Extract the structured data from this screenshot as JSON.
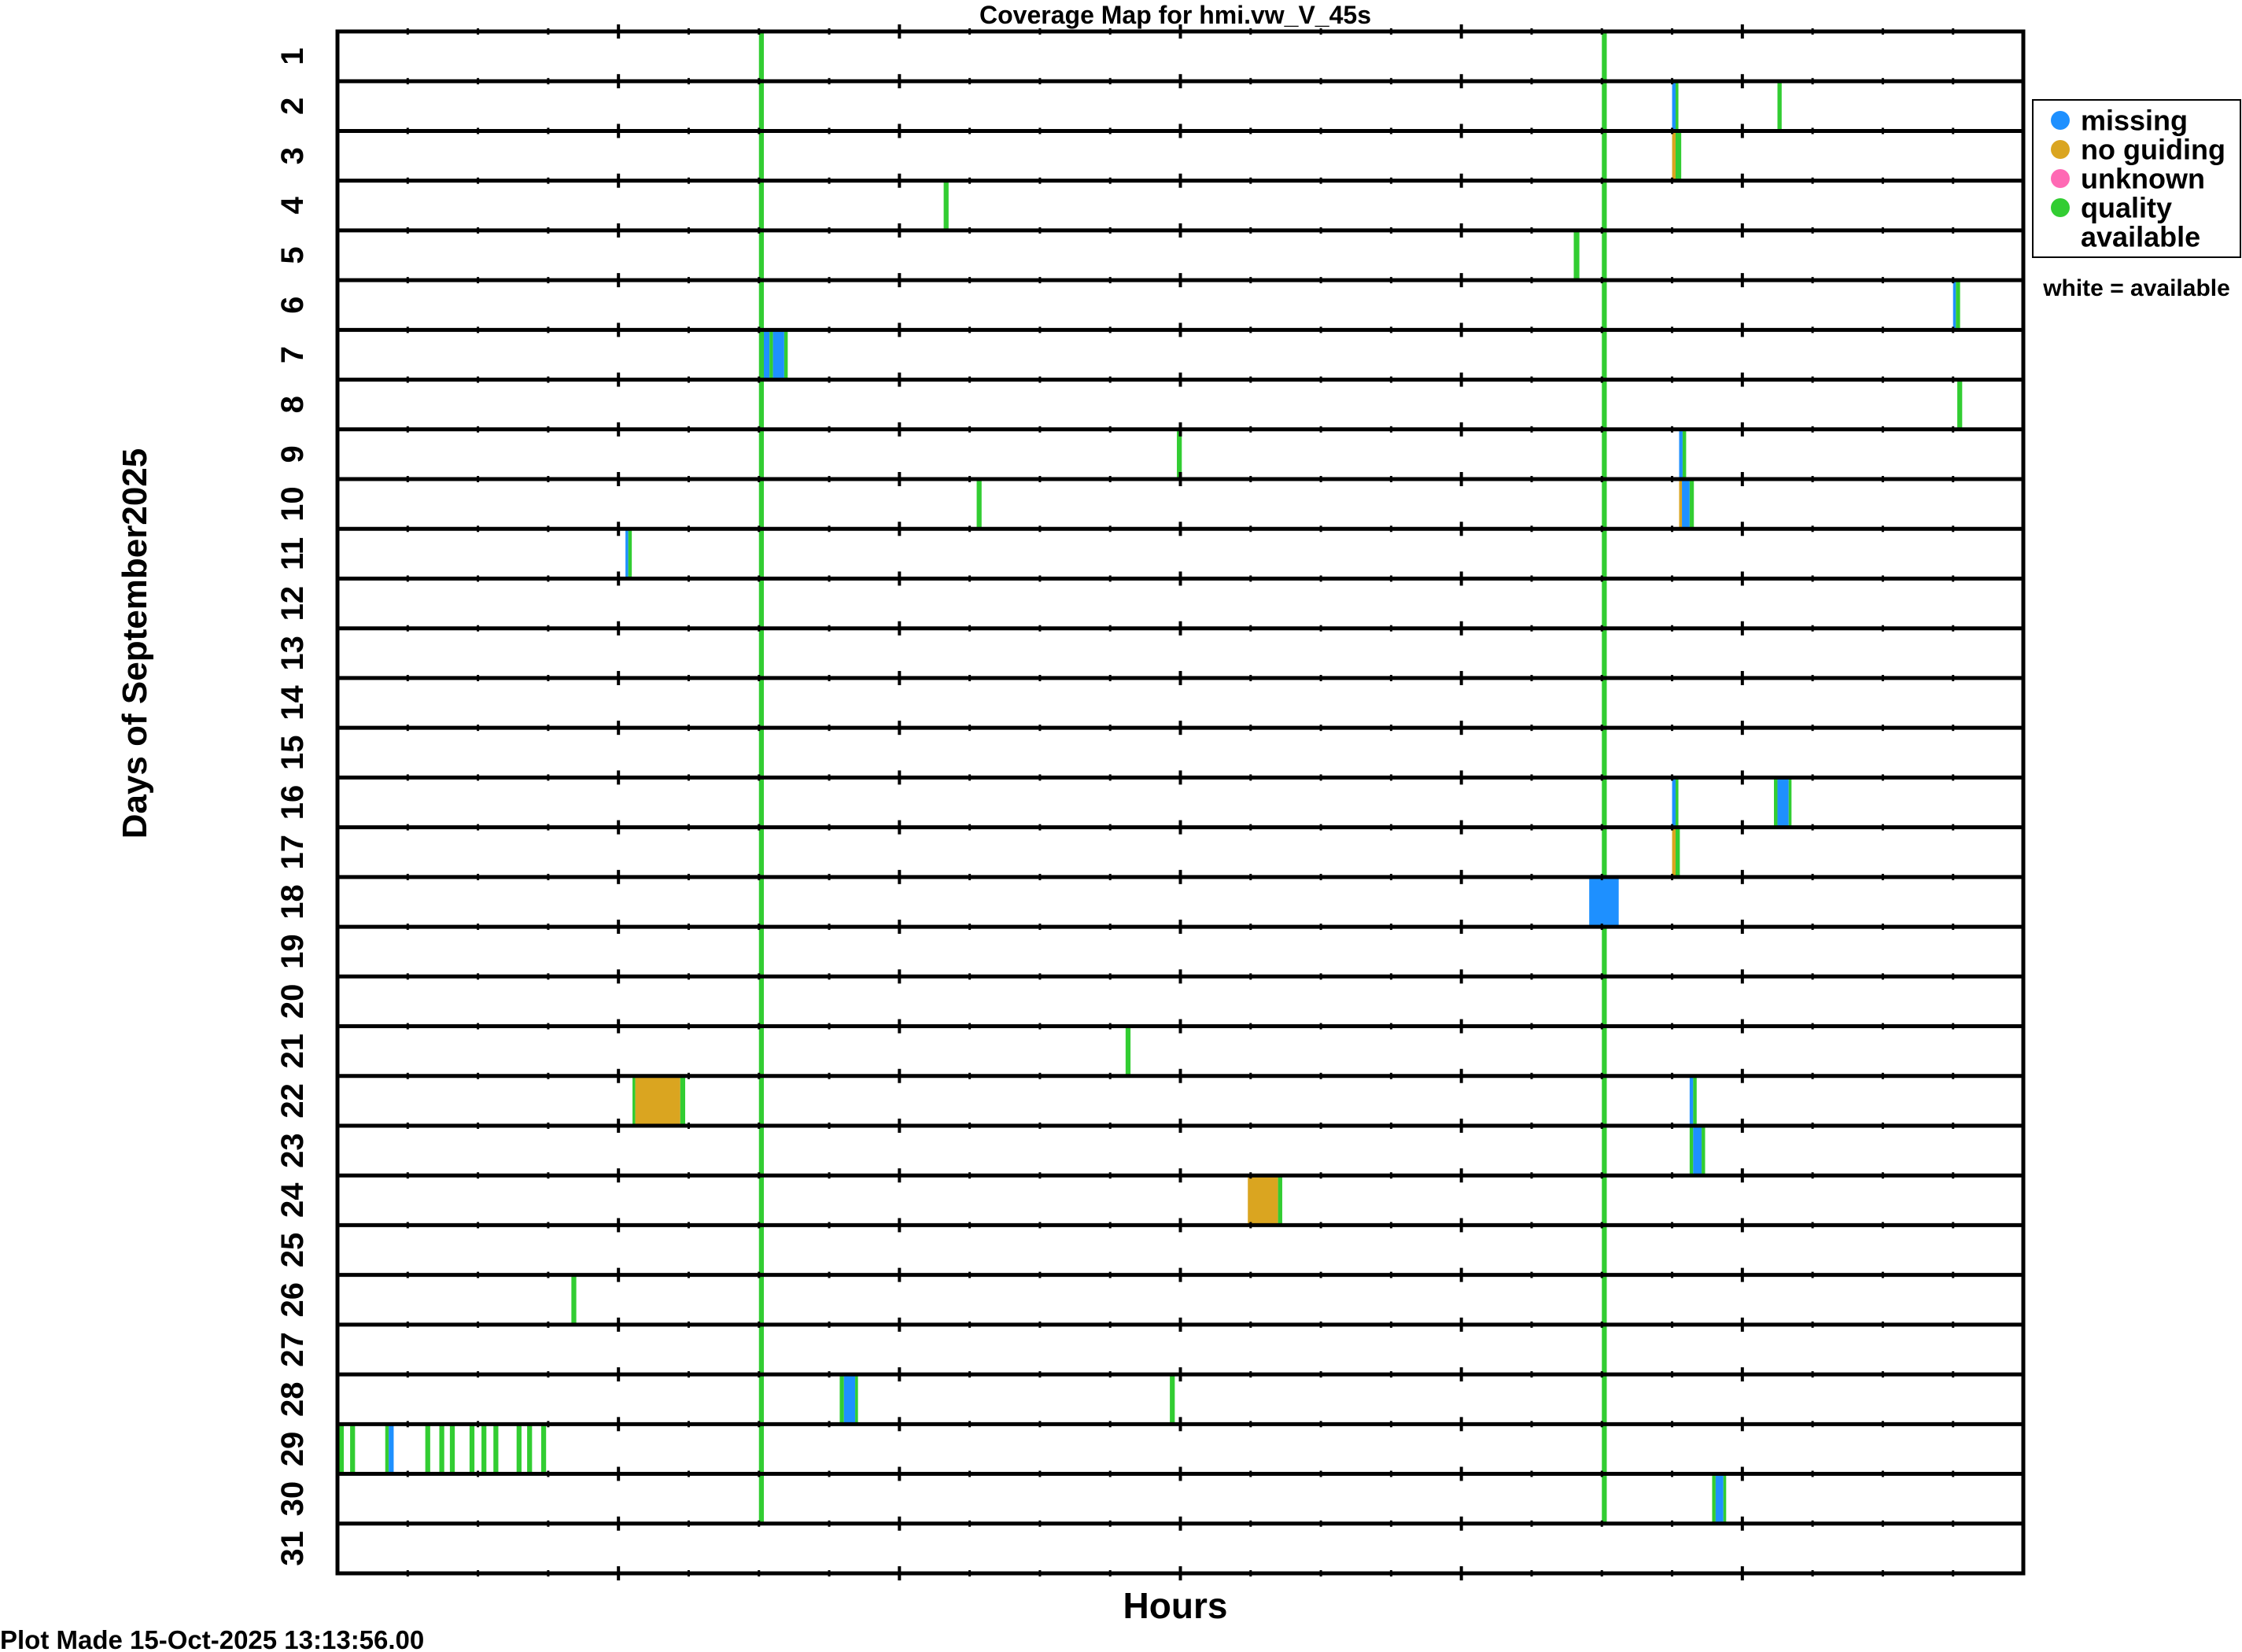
{
  "chart_data": {
    "type": "heatmap",
    "title": "Coverage Map for hmi.vw_V_45s",
    "xlabel": "Hours",
    "ylabel": "Days of September2025",
    "xlim": [
      0,
      24
    ],
    "day_labels": [
      "1",
      "2",
      "3",
      "4",
      "5",
      "6",
      "7",
      "8",
      "9",
      "10",
      "11",
      "12",
      "13",
      "14",
      "15",
      "16",
      "17",
      "18",
      "19",
      "20",
      "21",
      "22",
      "23",
      "24",
      "25",
      "26",
      "27",
      "28",
      "29",
      "30",
      "31"
    ],
    "colors": {
      "missing": "#1e90ff",
      "no_guiding": "#daa520",
      "unknown": "#ff69b4",
      "quality": "#32cd32",
      "gridline": "#000000"
    },
    "legend": {
      "placement": "right",
      "items": [
        {
          "key": "missing",
          "lines": [
            "missing"
          ]
        },
        {
          "key": "no_guiding",
          "lines": [
            "no guiding"
          ]
        },
        {
          "key": "unknown",
          "lines": [
            "unknown"
          ]
        },
        {
          "key": "quality",
          "lines": [
            "quality",
            "available"
          ]
        }
      ],
      "note": "white = available"
    },
    "segments": [
      {
        "day": 1,
        "start": 6.0,
        "end": 6.07,
        "status": "quality"
      },
      {
        "day": 1,
        "start": 18.0,
        "end": 18.07,
        "status": "quality"
      },
      {
        "day": 2,
        "start": 6.0,
        "end": 6.07,
        "status": "quality"
      },
      {
        "day": 2,
        "start": 18.0,
        "end": 18.07,
        "status": "quality"
      },
      {
        "day": 2,
        "start": 19.0,
        "end": 19.05,
        "status": "missing"
      },
      {
        "day": 2,
        "start": 19.05,
        "end": 19.09,
        "status": "quality"
      },
      {
        "day": 2,
        "start": 20.5,
        "end": 20.56,
        "status": "quality"
      },
      {
        "day": 3,
        "start": 6.0,
        "end": 6.07,
        "status": "quality"
      },
      {
        "day": 3,
        "start": 18.0,
        "end": 18.07,
        "status": "quality"
      },
      {
        "day": 3,
        "start": 19.0,
        "end": 19.05,
        "status": "no_guiding"
      },
      {
        "day": 3,
        "start": 19.05,
        "end": 19.13,
        "status": "quality"
      },
      {
        "day": 4,
        "start": 6.0,
        "end": 6.07,
        "status": "quality"
      },
      {
        "day": 4,
        "start": 18.0,
        "end": 18.07,
        "status": "quality"
      },
      {
        "day": 4,
        "start": 8.63,
        "end": 8.7,
        "status": "quality"
      },
      {
        "day": 5,
        "start": 6.0,
        "end": 6.07,
        "status": "quality"
      },
      {
        "day": 5,
        "start": 18.0,
        "end": 18.07,
        "status": "quality"
      },
      {
        "day": 5,
        "start": 17.6,
        "end": 17.68,
        "status": "quality"
      },
      {
        "day": 6,
        "start": 6.0,
        "end": 6.07,
        "status": "quality"
      },
      {
        "day": 6,
        "start": 18.0,
        "end": 18.07,
        "status": "quality"
      },
      {
        "day": 6,
        "start": 23.0,
        "end": 23.04,
        "status": "missing"
      },
      {
        "day": 6,
        "start": 23.04,
        "end": 23.1,
        "status": "quality"
      },
      {
        "day": 7,
        "start": 6.0,
        "end": 6.07,
        "status": "quality"
      },
      {
        "day": 7,
        "start": 18.0,
        "end": 18.07,
        "status": "quality"
      },
      {
        "day": 7,
        "start": 6.07,
        "end": 6.15,
        "status": "missing"
      },
      {
        "day": 7,
        "start": 6.15,
        "end": 6.2,
        "status": "quality"
      },
      {
        "day": 7,
        "start": 6.2,
        "end": 6.36,
        "status": "missing"
      },
      {
        "day": 7,
        "start": 6.36,
        "end": 6.41,
        "status": "quality"
      },
      {
        "day": 8,
        "start": 6.0,
        "end": 6.07,
        "status": "quality"
      },
      {
        "day": 8,
        "start": 18.0,
        "end": 18.07,
        "status": "quality"
      },
      {
        "day": 8,
        "start": 23.06,
        "end": 23.13,
        "status": "quality"
      },
      {
        "day": 9,
        "start": 6.0,
        "end": 6.07,
        "status": "quality"
      },
      {
        "day": 9,
        "start": 18.0,
        "end": 18.07,
        "status": "quality"
      },
      {
        "day": 9,
        "start": 11.95,
        "end": 12.02,
        "status": "quality"
      },
      {
        "day": 9,
        "start": 19.1,
        "end": 19.15,
        "status": "missing"
      },
      {
        "day": 9,
        "start": 19.15,
        "end": 19.2,
        "status": "quality"
      },
      {
        "day": 10,
        "start": 6.0,
        "end": 6.07,
        "status": "quality"
      },
      {
        "day": 10,
        "start": 18.0,
        "end": 18.07,
        "status": "quality"
      },
      {
        "day": 10,
        "start": 9.1,
        "end": 9.17,
        "status": "quality"
      },
      {
        "day": 10,
        "start": 19.1,
        "end": 19.14,
        "status": "no_guiding"
      },
      {
        "day": 10,
        "start": 19.14,
        "end": 19.25,
        "status": "missing"
      },
      {
        "day": 10,
        "start": 19.25,
        "end": 19.31,
        "status": "quality"
      },
      {
        "day": 11,
        "start": 6.0,
        "end": 6.07,
        "status": "quality"
      },
      {
        "day": 11,
        "start": 18.0,
        "end": 18.07,
        "status": "quality"
      },
      {
        "day": 11,
        "start": 4.1,
        "end": 4.14,
        "status": "missing"
      },
      {
        "day": 11,
        "start": 4.14,
        "end": 4.19,
        "status": "quality"
      },
      {
        "day": 12,
        "start": 6.0,
        "end": 6.07,
        "status": "quality"
      },
      {
        "day": 12,
        "start": 18.0,
        "end": 18.07,
        "status": "quality"
      },
      {
        "day": 13,
        "start": 6.0,
        "end": 6.07,
        "status": "quality"
      },
      {
        "day": 13,
        "start": 18.0,
        "end": 18.07,
        "status": "quality"
      },
      {
        "day": 14,
        "start": 6.0,
        "end": 6.07,
        "status": "quality"
      },
      {
        "day": 14,
        "start": 18.0,
        "end": 18.07,
        "status": "quality"
      },
      {
        "day": 15,
        "start": 6.0,
        "end": 6.07,
        "status": "quality"
      },
      {
        "day": 15,
        "start": 18.0,
        "end": 18.07,
        "status": "quality"
      },
      {
        "day": 16,
        "start": 6.0,
        "end": 6.07,
        "status": "quality"
      },
      {
        "day": 16,
        "start": 18.0,
        "end": 18.07,
        "status": "quality"
      },
      {
        "day": 16,
        "start": 19.0,
        "end": 19.05,
        "status": "missing"
      },
      {
        "day": 16,
        "start": 19.05,
        "end": 19.09,
        "status": "quality"
      },
      {
        "day": 16,
        "start": 20.45,
        "end": 20.5,
        "status": "quality"
      },
      {
        "day": 16,
        "start": 20.5,
        "end": 20.66,
        "status": "missing"
      },
      {
        "day": 16,
        "start": 20.66,
        "end": 20.7,
        "status": "quality"
      },
      {
        "day": 17,
        "start": 6.0,
        "end": 6.07,
        "status": "quality"
      },
      {
        "day": 17,
        "start": 18.0,
        "end": 18.07,
        "status": "quality"
      },
      {
        "day": 17,
        "start": 19.0,
        "end": 19.05,
        "status": "no_guiding"
      },
      {
        "day": 17,
        "start": 19.05,
        "end": 19.11,
        "status": "quality"
      },
      {
        "day": 18,
        "start": 6.0,
        "end": 6.07,
        "status": "quality"
      },
      {
        "day": 18,
        "start": 17.82,
        "end": 18.24,
        "status": "missing"
      },
      {
        "day": 19,
        "start": 6.0,
        "end": 6.07,
        "status": "quality"
      },
      {
        "day": 19,
        "start": 18.0,
        "end": 18.07,
        "status": "quality"
      },
      {
        "day": 20,
        "start": 6.0,
        "end": 6.07,
        "status": "quality"
      },
      {
        "day": 20,
        "start": 18.0,
        "end": 18.07,
        "status": "quality"
      },
      {
        "day": 21,
        "start": 6.0,
        "end": 6.07,
        "status": "quality"
      },
      {
        "day": 21,
        "start": 18.0,
        "end": 18.07,
        "status": "quality"
      },
      {
        "day": 21,
        "start": 11.22,
        "end": 11.29,
        "status": "quality"
      },
      {
        "day": 22,
        "start": 6.0,
        "end": 6.07,
        "status": "quality"
      },
      {
        "day": 22,
        "start": 18.0,
        "end": 18.07,
        "status": "quality"
      },
      {
        "day": 22,
        "start": 4.2,
        "end": 4.24,
        "status": "quality"
      },
      {
        "day": 22,
        "start": 4.24,
        "end": 4.88,
        "status": "no_guiding"
      },
      {
        "day": 22,
        "start": 4.88,
        "end": 4.95,
        "status": "quality"
      },
      {
        "day": 22,
        "start": 19.25,
        "end": 19.3,
        "status": "missing"
      },
      {
        "day": 22,
        "start": 19.3,
        "end": 19.35,
        "status": "quality"
      },
      {
        "day": 23,
        "start": 6.0,
        "end": 6.07,
        "status": "quality"
      },
      {
        "day": 23,
        "start": 18.0,
        "end": 18.07,
        "status": "quality"
      },
      {
        "day": 23,
        "start": 19.25,
        "end": 19.3,
        "status": "quality"
      },
      {
        "day": 23,
        "start": 19.3,
        "end": 19.42,
        "status": "missing"
      },
      {
        "day": 23,
        "start": 19.42,
        "end": 19.47,
        "status": "quality"
      },
      {
        "day": 24,
        "start": 6.0,
        "end": 6.07,
        "status": "quality"
      },
      {
        "day": 24,
        "start": 18.0,
        "end": 18.07,
        "status": "quality"
      },
      {
        "day": 24,
        "start": 12.96,
        "end": 13.39,
        "status": "no_guiding"
      },
      {
        "day": 24,
        "start": 13.39,
        "end": 13.45,
        "status": "quality"
      },
      {
        "day": 25,
        "start": 6.0,
        "end": 6.07,
        "status": "quality"
      },
      {
        "day": 25,
        "start": 18.0,
        "end": 18.07,
        "status": "quality"
      },
      {
        "day": 26,
        "start": 6.0,
        "end": 6.07,
        "status": "quality"
      },
      {
        "day": 26,
        "start": 18.0,
        "end": 18.07,
        "status": "quality"
      },
      {
        "day": 26,
        "start": 3.33,
        "end": 3.4,
        "status": "quality"
      },
      {
        "day": 27,
        "start": 6.0,
        "end": 6.07,
        "status": "quality"
      },
      {
        "day": 27,
        "start": 18.0,
        "end": 18.07,
        "status": "quality"
      },
      {
        "day": 28,
        "start": 6.0,
        "end": 6.07,
        "status": "quality"
      },
      {
        "day": 28,
        "start": 18.0,
        "end": 18.07,
        "status": "quality"
      },
      {
        "day": 28,
        "start": 7.15,
        "end": 7.21,
        "status": "quality"
      },
      {
        "day": 28,
        "start": 7.21,
        "end": 7.37,
        "status": "missing"
      },
      {
        "day": 28,
        "start": 7.37,
        "end": 7.41,
        "status": "quality"
      },
      {
        "day": 28,
        "start": 11.85,
        "end": 11.92,
        "status": "quality"
      },
      {
        "day": 29,
        "start": 6.0,
        "end": 6.07,
        "status": "quality"
      },
      {
        "day": 29,
        "start": 18.0,
        "end": 18.07,
        "status": "quality"
      },
      {
        "day": 29,
        "start": 0.02,
        "end": 0.09,
        "status": "quality"
      },
      {
        "day": 29,
        "start": 0.18,
        "end": 0.25,
        "status": "quality"
      },
      {
        "day": 29,
        "start": 0.68,
        "end": 0.73,
        "status": "quality"
      },
      {
        "day": 29,
        "start": 0.73,
        "end": 0.8,
        "status": "missing"
      },
      {
        "day": 29,
        "start": 1.25,
        "end": 1.32,
        "status": "quality"
      },
      {
        "day": 29,
        "start": 1.45,
        "end": 1.52,
        "status": "quality"
      },
      {
        "day": 29,
        "start": 1.6,
        "end": 1.67,
        "status": "quality"
      },
      {
        "day": 29,
        "start": 1.88,
        "end": 1.95,
        "status": "quality"
      },
      {
        "day": 29,
        "start": 2.05,
        "end": 2.12,
        "status": "quality"
      },
      {
        "day": 29,
        "start": 2.22,
        "end": 2.29,
        "status": "quality"
      },
      {
        "day": 29,
        "start": 2.55,
        "end": 2.62,
        "status": "quality"
      },
      {
        "day": 29,
        "start": 2.7,
        "end": 2.77,
        "status": "quality"
      },
      {
        "day": 29,
        "start": 2.9,
        "end": 2.97,
        "status": "quality"
      },
      {
        "day": 30,
        "start": 6.0,
        "end": 6.07,
        "status": "quality"
      },
      {
        "day": 30,
        "start": 18.0,
        "end": 18.07,
        "status": "quality"
      },
      {
        "day": 30,
        "start": 19.57,
        "end": 19.62,
        "status": "quality"
      },
      {
        "day": 30,
        "start": 19.62,
        "end": 19.73,
        "status": "missing"
      },
      {
        "day": 30,
        "start": 19.73,
        "end": 19.77,
        "status": "quality"
      }
    ]
  },
  "footer": {
    "plot_made": "Plot Made 15-Oct-2025 13:13:56.00"
  }
}
